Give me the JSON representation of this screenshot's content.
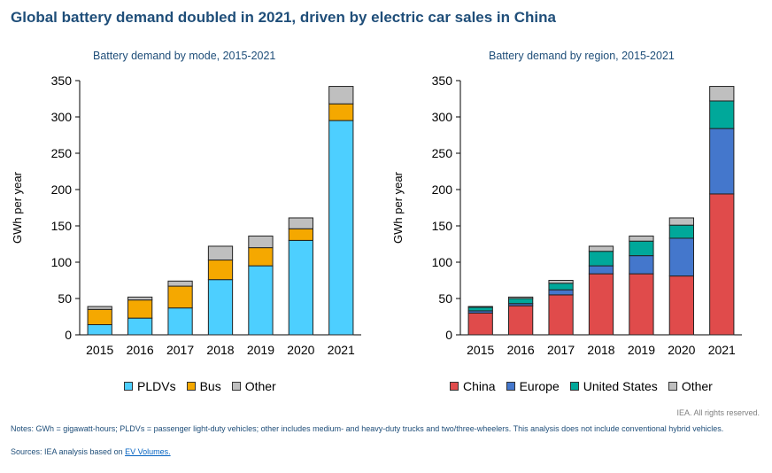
{
  "title": "Global battery demand doubled in 2021, driven by electric car sales in China",
  "colors": {
    "PLDVs": "#4dcfff",
    "Bus": "#f5a800",
    "Other": "#bfbfbf",
    "China": "#e04b4b",
    "Europe": "#4477cc",
    "United States": "#00a89a",
    "OtherRegion": "#bfbfbf"
  },
  "chart_data": [
    {
      "type": "bar",
      "stacked": true,
      "title": "Battery demand by mode, 2015-2021",
      "ylabel": "GWh per year",
      "xlabel": "",
      "ylim": [
        0,
        350
      ],
      "yticks": [
        0,
        50,
        100,
        150,
        200,
        250,
        300,
        350
      ],
      "categories": [
        "2015",
        "2016",
        "2017",
        "2018",
        "2019",
        "2020",
        "2021"
      ],
      "series": [
        {
          "name": "PLDVs",
          "color": "#4dcfff",
          "values": [
            14,
            23,
            37,
            76,
            95,
            130,
            295
          ]
        },
        {
          "name": "Bus",
          "color": "#f5a800",
          "values": [
            21,
            25,
            30,
            27,
            25,
            16,
            23
          ]
        },
        {
          "name": "Other",
          "color": "#bfbfbf",
          "values": [
            4,
            4,
            7,
            19,
            16,
            15,
            24
          ]
        }
      ]
    },
    {
      "type": "bar",
      "stacked": true,
      "title": "Battery demand by region, 2015-2021",
      "ylabel": "GWh per year",
      "xlabel": "",
      "ylim": [
        0,
        350
      ],
      "yticks": [
        0,
        50,
        100,
        150,
        200,
        250,
        300,
        350
      ],
      "categories": [
        "2015",
        "2016",
        "2017",
        "2018",
        "2019",
        "2020",
        "2021"
      ],
      "series": [
        {
          "name": "China",
          "color": "#e04b4b",
          "values": [
            30,
            40,
            55,
            84,
            84,
            81,
            194
          ]
        },
        {
          "name": "Europe",
          "color": "#4477cc",
          "values": [
            3,
            3,
            7,
            11,
            25,
            52,
            90
          ]
        },
        {
          "name": "United States",
          "color": "#00a89a",
          "values": [
            5,
            7,
            9,
            20,
            20,
            18,
            38
          ]
        },
        {
          "name": "Other",
          "color": "#bfbfbf",
          "values": [
            1,
            2,
            4,
            7,
            7,
            10,
            20
          ]
        }
      ]
    }
  ],
  "rights": "IEA. All rights reserved.",
  "notes": "Notes: GWh = gigawatt-hours; PLDVs = passenger light-duty vehicles; other includes medium- and heavy-duty trucks and two/three-wheelers. This analysis does not include conventional hybrid vehicles.",
  "sources_prefix": "Sources: IEA analysis based on ",
  "sources_link": "EV Volumes."
}
